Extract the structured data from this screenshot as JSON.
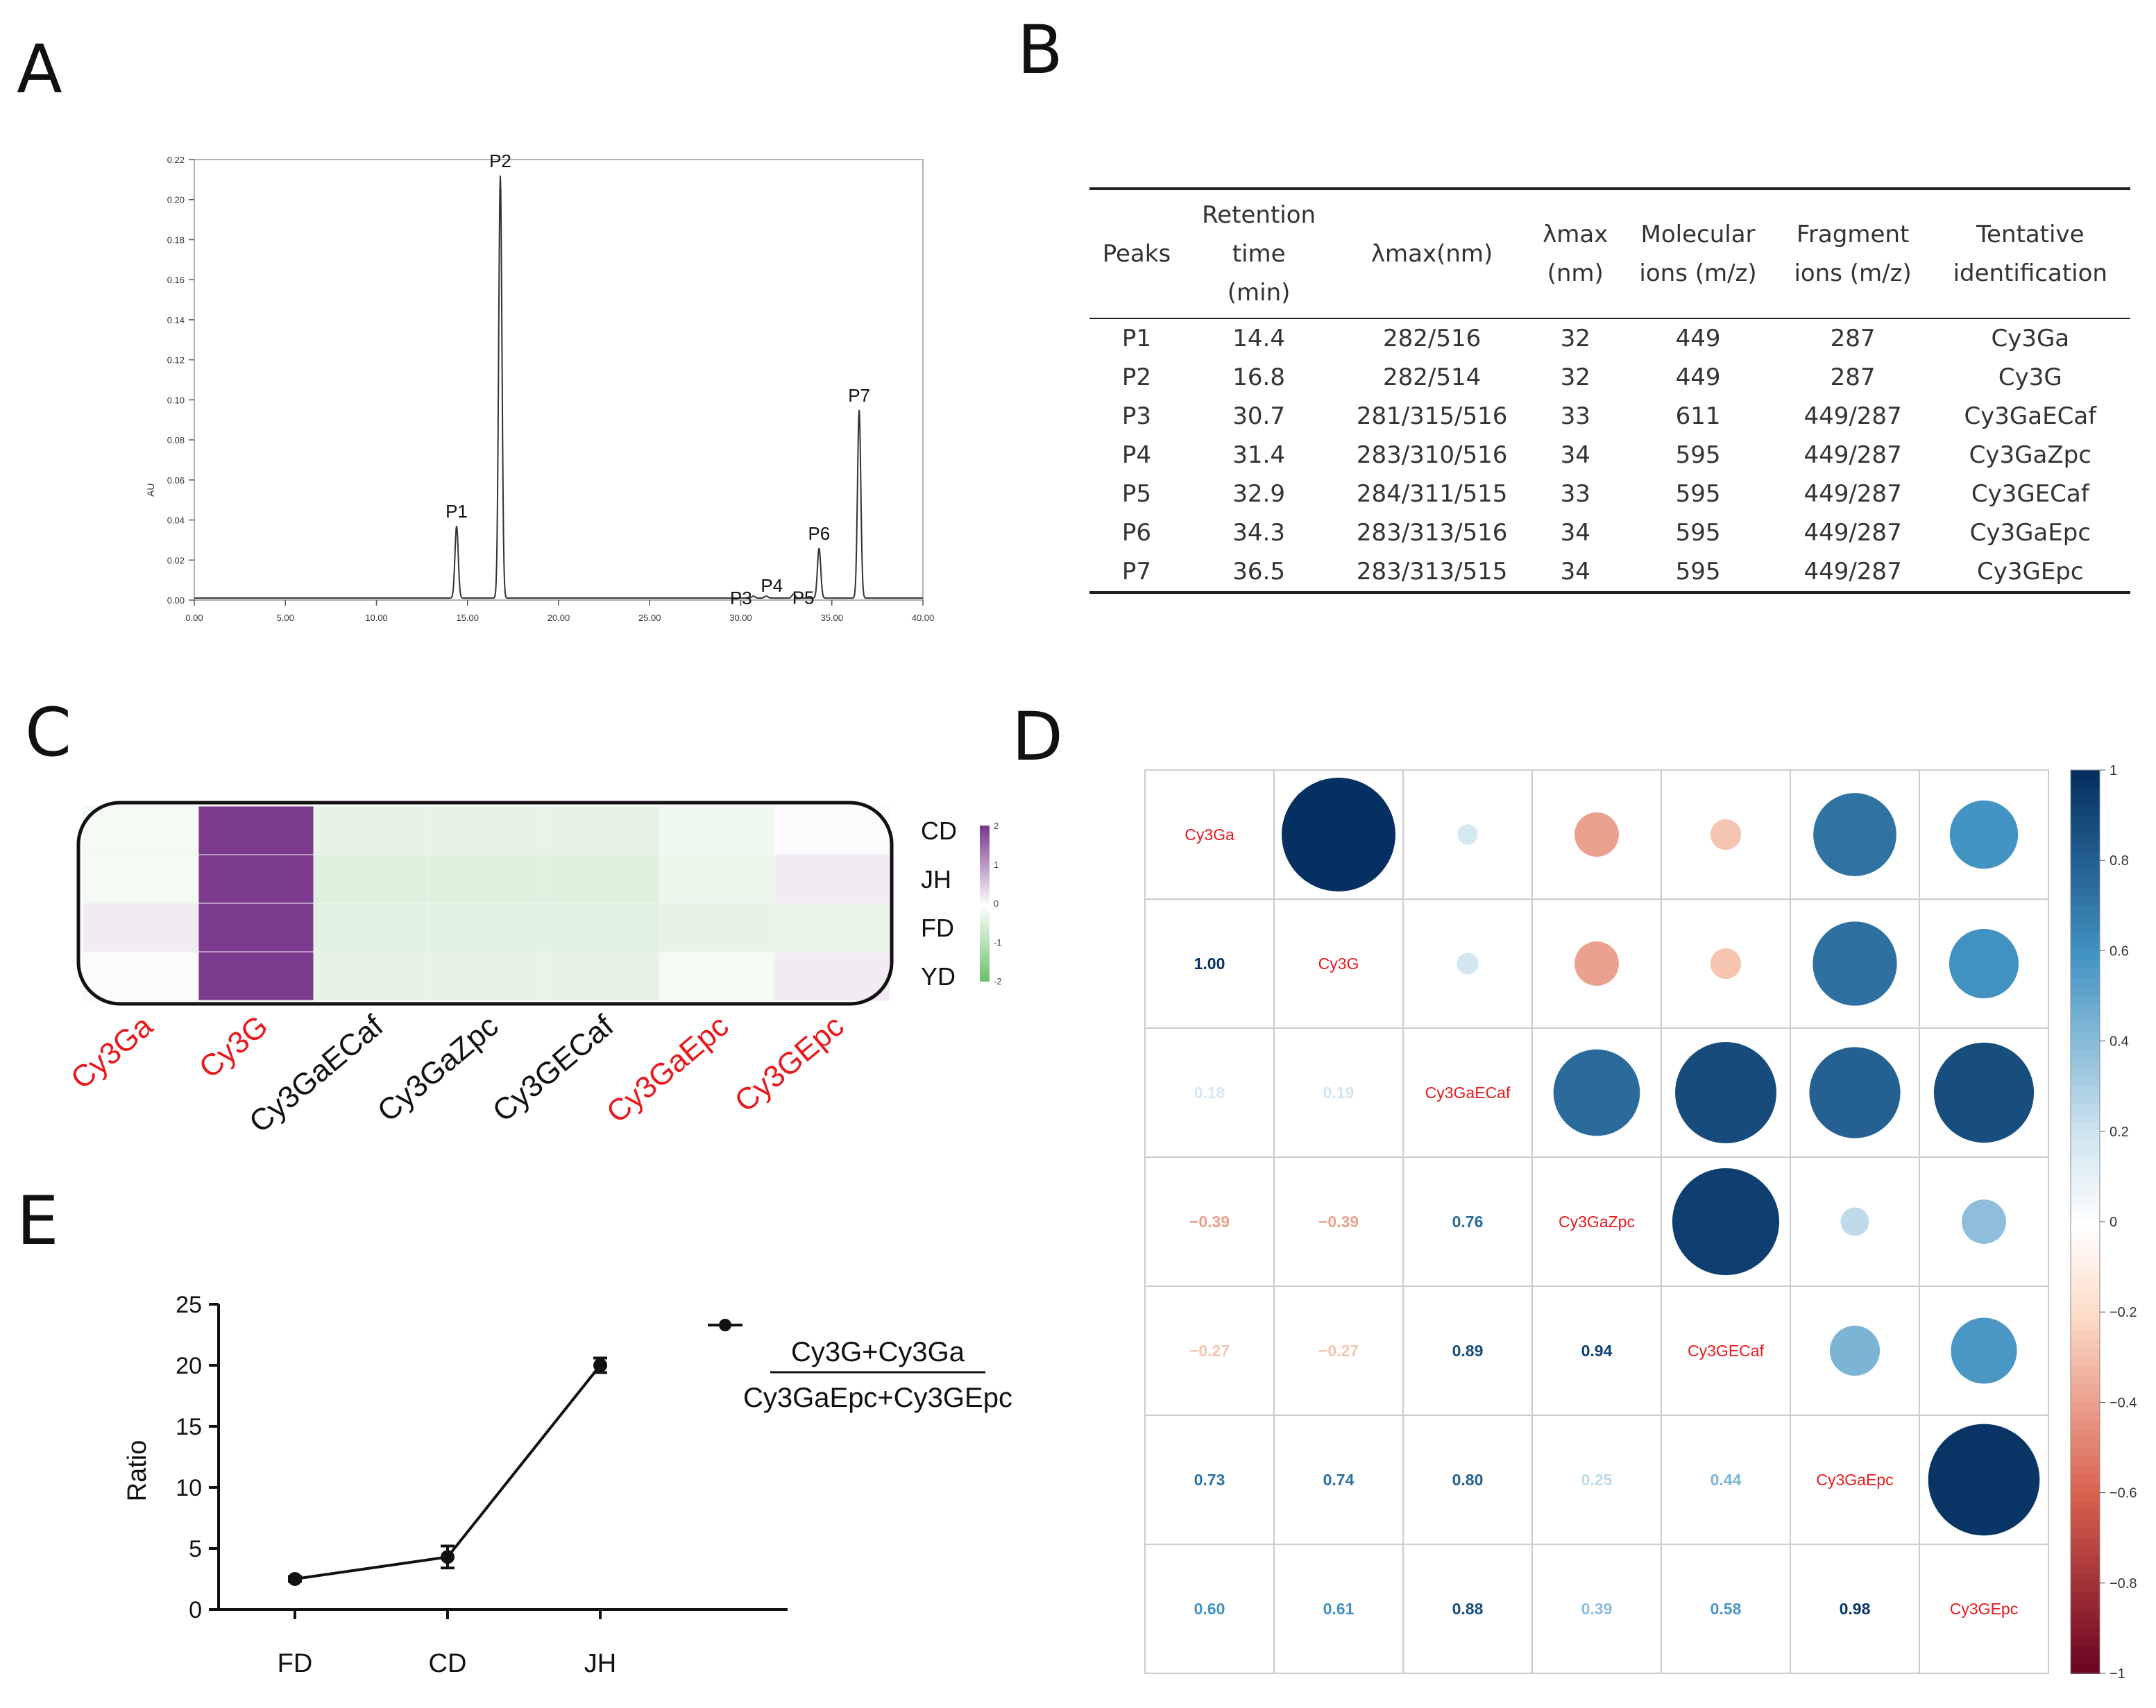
{
  "panels": {
    "a": "A",
    "b": "B",
    "c": "C",
    "d": "D",
    "e": "E"
  },
  "chart_data": [
    {
      "panel": "A",
      "type": "line",
      "title": "",
      "xlabel": "",
      "ylabel": "AU",
      "xlim": [
        0,
        40
      ],
      "ylim": [
        0,
        0.22
      ],
      "xticks": [
        "0.00",
        "5.00",
        "10.00",
        "15.00",
        "20.00",
        "25.00",
        "30.00",
        "35.00",
        "40.00"
      ],
      "yticks": [
        "0.00",
        "0.02",
        "0.04",
        "0.06",
        "0.08",
        "0.10",
        "0.12",
        "0.14",
        "0.16",
        "0.18",
        "0.20",
        "0.22"
      ],
      "peaks": [
        {
          "label": "P1",
          "x": 14.4,
          "y": 0.037
        },
        {
          "label": "P2",
          "x": 16.8,
          "y": 0.212
        },
        {
          "label": "P3",
          "x": 30.7,
          "y": 0.002
        },
        {
          "label": "P4",
          "x": 31.4,
          "y": 0.002
        },
        {
          "label": "P5",
          "x": 32.9,
          "y": 0.003
        },
        {
          "label": "P6",
          "x": 34.3,
          "y": 0.026
        },
        {
          "label": "P7",
          "x": 36.5,
          "y": 0.095
        }
      ]
    },
    {
      "panel": "B",
      "type": "table",
      "headers": {
        "peaks": "Peaks",
        "rt": [
          "Retention",
          "time",
          "(min)"
        ],
        "lmax": "λmax(nm)",
        "lmax2": [
          "λmax",
          "(nm)"
        ],
        "mol": [
          "Molecular",
          "ions (m/z)"
        ],
        "frag": [
          "Fragment",
          "ions (m/z)"
        ],
        "tent": [
          "Tentative",
          "identification"
        ]
      },
      "rows": [
        [
          "P1",
          "14.4",
          "282/516",
          "32",
          "449",
          "287",
          "Cy3Ga"
        ],
        [
          "P2",
          "16.8",
          "282/514",
          "32",
          "449",
          "287",
          "Cy3G"
        ],
        [
          "P3",
          "30.7",
          "281/315/516",
          "33",
          "611",
          "449/287",
          "Cy3GaECaf"
        ],
        [
          "P4",
          "31.4",
          "283/310/516",
          "34",
          "595",
          "449/287",
          "Cy3GaZpc"
        ],
        [
          "P5",
          "32.9",
          "284/311/515",
          "33",
          "595",
          "449/287",
          "Cy3GECaf"
        ],
        [
          "P6",
          "34.3",
          "283/313/516",
          "34",
          "595",
          "449/287",
          "Cy3GaEpc"
        ],
        [
          "P7",
          "36.5",
          "283/313/515",
          "34",
          "595",
          "449/287",
          "Cy3GEpc"
        ]
      ]
    },
    {
      "panel": "C",
      "type": "heatmap",
      "columns": [
        "Cy3Ga",
        "Cy3G",
        "Cy3GaECaf",
        "Cy3GaZpc",
        "Cy3GECaf",
        "Cy3GaEpc",
        "Cy3GEpc"
      ],
      "column_highlight": [
        true,
        true,
        false,
        false,
        false,
        true,
        true
      ],
      "rows": [
        "CD",
        "JH",
        "FD",
        "YD"
      ],
      "values": [
        [
          -0.15,
          2.45,
          -0.35,
          -0.35,
          -0.35,
          -0.2,
          0.05
        ],
        [
          -0.15,
          2.45,
          -0.45,
          -0.45,
          -0.45,
          -0.25,
          0.2
        ],
        [
          0.2,
          2.45,
          -0.4,
          -0.4,
          -0.4,
          -0.35,
          -0.3
        ],
        [
          0.05,
          2.45,
          -0.35,
          -0.35,
          -0.35,
          -0.15,
          0.2
        ]
      ],
      "colorbar_ticks": [
        "2",
        "1",
        "0",
        "-1",
        "-2"
      ],
      "colorbar_range": [
        -2,
        2
      ]
    },
    {
      "panel": "D",
      "type": "heatmap",
      "variables": [
        "Cy3Ga",
        "Cy3G",
        "Cy3GaECaf",
        "Cy3GaZpc",
        "Cy3GECaf",
        "Cy3GaEpc",
        "Cy3GEpc"
      ],
      "matrix": [
        [
          1.0,
          1.0,
          0.18,
          -0.39,
          -0.27,
          0.73,
          0.6
        ],
        [
          1.0,
          1.0,
          0.19,
          -0.39,
          -0.27,
          0.74,
          0.61
        ],
        [
          0.18,
          0.19,
          1.0,
          0.76,
          0.89,
          0.8,
          0.88
        ],
        [
          -0.39,
          -0.39,
          0.76,
          1.0,
          0.94,
          0.25,
          0.39
        ],
        [
          -0.27,
          -0.27,
          0.89,
          0.94,
          1.0,
          0.44,
          0.58
        ],
        [
          0.73,
          0.74,
          0.8,
          0.25,
          0.44,
          1.0,
          0.98
        ],
        [
          0.6,
          0.61,
          0.88,
          0.39,
          0.58,
          0.98,
          1.0
        ]
      ],
      "lower_labels": [
        "1.00",
        "0.18",
        "0.19",
        "−0.39",
        "−0.39",
        "0.76",
        "−0.27",
        "−0.27",
        "0.89",
        "0.94",
        "0.73",
        "0.74",
        "0.80",
        "0.25",
        "0.44",
        "0.60",
        "0.61",
        "0.88",
        "0.39",
        "0.58",
        "0.98"
      ],
      "colorbar_ticks": [
        "1",
        "0.8",
        "0.6",
        "0.4",
        "0.2",
        "0",
        "−0.2",
        "−0.4",
        "−0.6",
        "−0.8",
        "−1"
      ],
      "colorbar_range": [
        -1,
        1
      ]
    },
    {
      "panel": "E",
      "type": "line",
      "title": "",
      "xlabel": "",
      "ylabel": "Ratio",
      "categories": [
        "FD",
        "CD",
        "JH"
      ],
      "values": [
        2.5,
        4.3,
        20.0
      ],
      "errors": [
        0.2,
        0.9,
        0.6
      ],
      "ylim": [
        0,
        25
      ],
      "yticks": [
        "0",
        "5",
        "10",
        "15",
        "20",
        "25"
      ],
      "legend": {
        "numerator": "Cy3G+Cy3Ga",
        "denominator": "Cy3GaEpc+Cy3GEpc"
      }
    }
  ],
  "colors": {
    "highlight": "#e8191c",
    "heat_purple": "#7b3a8e",
    "heat_green": "#69bf67",
    "corr_dark": "#0a3263",
    "corr_red": "#7a0b1c"
  }
}
